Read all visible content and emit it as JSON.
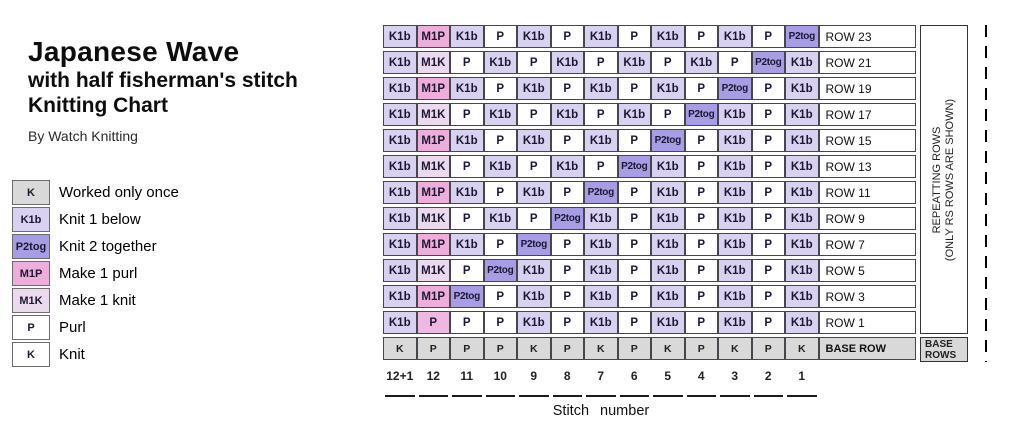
{
  "title": {
    "line1": "Japanese Wave",
    "line2": "with half fisherman's stitch",
    "line3": "Knitting Chart",
    "byline": "By Watch Knitting"
  },
  "legend": {
    "items": [
      {
        "symbol": "K",
        "label": "Worked only once",
        "color": "#d9d9d9"
      },
      {
        "symbol": "K1b",
        "label": "Knit 1 below",
        "color": "#d8d2f0"
      },
      {
        "symbol": "P2tog",
        "label": "Knit 2 together",
        "color": "#a79de5"
      },
      {
        "symbol": "M1P",
        "label": "Make 1 purl",
        "color": "#eeaedb"
      },
      {
        "symbol": "M1K",
        "label": "Make 1 knit",
        "color": "#ebd9ee"
      },
      {
        "symbol": "P",
        "label": "Purl",
        "color": "#ffffff"
      },
      {
        "symbol": "K",
        "label": "Knit",
        "color": "#ffffff"
      }
    ]
  },
  "chart_data": {
    "type": "table",
    "title": "Japanese Wave with half fisherman's stitch Knitting Chart",
    "xlabel": "Stitch number",
    "stitch_numbers": [
      "12+1",
      "12",
      "11",
      "10",
      "9",
      "8",
      "7",
      "6",
      "5",
      "4",
      "3",
      "2",
      "1"
    ],
    "rows": [
      {
        "label": "ROW 23",
        "cells": [
          "K1b",
          "M1P",
          "K1b",
          "P",
          "K1b",
          "P",
          "K1b",
          "P",
          "K1b",
          "P",
          "K1b",
          "P",
          "P2tog"
        ]
      },
      {
        "label": "ROW 21",
        "cells": [
          "K1b",
          "M1K",
          "P",
          "K1b",
          "P",
          "K1b",
          "P",
          "K1b",
          "P",
          "K1b",
          "P",
          "P2tog",
          "K1b"
        ]
      },
      {
        "label": "ROW 19",
        "cells": [
          "K1b",
          "M1P",
          "K1b",
          "P",
          "K1b",
          "P",
          "K1b",
          "P",
          "K1b",
          "P",
          "P2tog",
          "P",
          "K1b"
        ]
      },
      {
        "label": "ROW 17",
        "cells": [
          "K1b",
          "M1K",
          "P",
          "K1b",
          "P",
          "K1b",
          "P",
          "K1b",
          "P",
          "P2tog",
          "K1b",
          "P",
          "K1b"
        ]
      },
      {
        "label": "ROW 15",
        "cells": [
          "K1b",
          "M1P",
          "K1b",
          "P",
          "K1b",
          "P",
          "K1b",
          "P",
          "P2tog",
          "P",
          "K1b",
          "P",
          "K1b"
        ]
      },
      {
        "label": "ROW 13",
        "cells": [
          "K1b",
          "M1K",
          "P",
          "K1b",
          "P",
          "K1b",
          "P",
          "P2tog",
          "K1b",
          "P",
          "K1b",
          "P",
          "K1b"
        ]
      },
      {
        "label": "ROW 11",
        "cells": [
          "K1b",
          "M1P",
          "K1b",
          "P",
          "K1b",
          "P",
          "P2tog",
          "P",
          "K1b",
          "P",
          "K1b",
          "P",
          "K1b"
        ]
      },
      {
        "label": "ROW 9",
        "cells": [
          "K1b",
          "M1K",
          "P",
          "K1b",
          "P",
          "P2tog",
          "K1b",
          "P",
          "K1b",
          "P",
          "K1b",
          "P",
          "K1b"
        ]
      },
      {
        "label": "ROW 7",
        "cells": [
          "K1b",
          "M1P",
          "K1b",
          "P",
          "P2tog",
          "P",
          "K1b",
          "P",
          "K1b",
          "P",
          "K1b",
          "P",
          "K1b"
        ]
      },
      {
        "label": "ROW 5",
        "cells": [
          "K1b",
          "M1K",
          "P",
          "P2tog",
          "K1b",
          "P",
          "K1b",
          "P",
          "K1b",
          "P",
          "K1b",
          "P",
          "K1b"
        ]
      },
      {
        "label": "ROW 3",
        "cells": [
          "K1b",
          "M1P",
          "P2tog",
          "P",
          "K1b",
          "P",
          "K1b",
          "P",
          "K1b",
          "P",
          "K1b",
          "P",
          "K1b"
        ]
      },
      {
        "label": "ROW 1",
        "cells": [
          "K1b",
          "P_pink",
          "P",
          "P",
          "K1b",
          "P",
          "K1b",
          "P",
          "K1b",
          "P",
          "K1b",
          "P",
          "K1b"
        ]
      }
    ],
    "base_row": {
      "label": "BASE ROW",
      "cells": [
        "K",
        "P",
        "P",
        "P",
        "K",
        "P",
        "K",
        "P",
        "K",
        "P",
        "K",
        "P",
        "K"
      ]
    },
    "right_note_line1": "REPEATTING ROWS",
    "right_note_line2": "(ONLY RS ROWS ARE SHOWN)",
    "base_rows_label": "BASE ROWS",
    "colors": {
      "K1b": "#d8d2f0",
      "P": "#ffffff",
      "K": "#ffffff",
      "P2tog": "#a79de5",
      "M1P": "#eeaedb",
      "M1K": "#ebd9ee",
      "P_pink": "#efb8e2",
      "base": "#d9d9d9"
    }
  }
}
